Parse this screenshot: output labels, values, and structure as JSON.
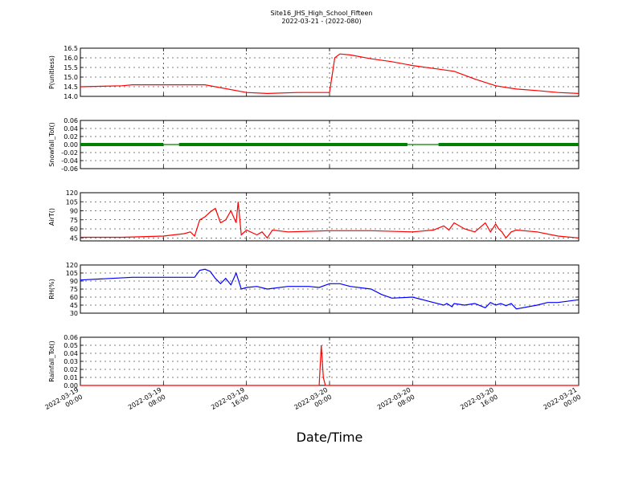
{
  "title_line1": "Site16_JHS_High_School_Fifteen",
  "title_line2": "2022-03-21 - (2022-080)",
  "xlabel": "Date/Time",
  "x_ticks": [
    {
      "l1": "2022-03-19",
      "l2": "00:00"
    },
    {
      "l1": "2022-03-19",
      "l2": "08:00"
    },
    {
      "l1": "2022-03-19",
      "l2": "16:00"
    },
    {
      "l1": "2022-03-20",
      "l2": "00:00"
    },
    {
      "l1": "2022-03-20",
      "l2": "08:00"
    },
    {
      "l1": "2022-03-20",
      "l2": "16:00"
    },
    {
      "l1": "2022-03-21",
      "l2": "00:00"
    }
  ],
  "chart_data": [
    {
      "type": "line",
      "ylabel": "P(unitless)",
      "ylim": [
        14.0,
        16.5
      ],
      "yticks": [
        "14.0",
        "14.5",
        "15.0",
        "15.5",
        "16.0",
        "16.5"
      ],
      "grid": true,
      "color": "#ff0000",
      "x_hours": [
        0,
        4,
        5,
        8,
        12,
        16,
        18,
        21,
        24,
        24.5,
        25,
        26,
        28,
        30,
        32,
        34,
        36,
        38,
        40,
        42,
        44,
        46,
        48
      ],
      "values": [
        14.5,
        14.55,
        14.6,
        14.6,
        14.6,
        14.2,
        14.15,
        14.2,
        14.2,
        16.0,
        16.2,
        16.15,
        15.95,
        15.8,
        15.6,
        15.45,
        15.3,
        14.9,
        14.55,
        14.38,
        14.3,
        14.2,
        14.15
      ]
    },
    {
      "type": "line",
      "ylabel": "Snowfall_Tot()",
      "ylim": [
        -0.06,
        0.06
      ],
      "yticks": [
        "-0.06",
        "-0.04",
        "-0.02",
        "0.00",
        "0.02",
        "0.04",
        "0.06"
      ],
      "grid": true,
      "color": "#008000",
      "x_hours": [
        0,
        48
      ],
      "values": [
        0.0,
        0.0
      ],
      "marker_segments_hours": [
        [
          0,
          8
        ],
        [
          9.5,
          31.5
        ],
        [
          34.5,
          48
        ]
      ]
    },
    {
      "type": "line",
      "ylabel": "AirT()",
      "ylim": [
        40,
        120
      ],
      "yticks": [
        "45",
        "60",
        "75",
        "90",
        "105",
        "120"
      ],
      "grid": true,
      "color": "#ff0000",
      "x_hours": [
        0,
        4,
        8,
        10,
        10.6,
        11,
        11.5,
        12,
        12.5,
        13,
        13.5,
        14,
        14.5,
        15,
        15.2,
        15.5,
        16,
        17,
        17.5,
        18,
        18.5,
        20,
        24,
        28,
        32,
        34,
        35,
        35.5,
        36,
        37,
        38,
        39,
        39.5,
        40,
        40.3,
        40.6,
        41,
        41.5,
        42,
        44,
        46,
        48
      ],
      "values": [
        46,
        46,
        48,
        52,
        55,
        48,
        75,
        80,
        88,
        94,
        70,
        75,
        90,
        70,
        105,
        50,
        58,
        50,
        55,
        45,
        58,
        55,
        57,
        57,
        55,
        58,
        65,
        58,
        70,
        60,
        55,
        70,
        55,
        68,
        60,
        55,
        45,
        55,
        58,
        55,
        48,
        45
      ]
    },
    {
      "type": "line",
      "ylabel": "RH(%)",
      "ylim": [
        30,
        120
      ],
      "yticks": [
        "30",
        "45",
        "60",
        "75",
        "90",
        "105",
        "120"
      ],
      "grid": true,
      "color": "#0000ff",
      "x_hours": [
        0,
        3,
        5,
        8,
        11,
        11.5,
        12,
        12.5,
        13,
        13.5,
        14,
        14.5,
        15,
        15.5,
        16,
        17,
        18,
        20,
        22,
        23,
        24,
        25,
        26,
        28,
        29,
        30,
        32,
        34,
        35,
        35.3,
        35.8,
        36,
        37,
        38,
        39,
        39.5,
        40,
        40.5,
        41,
        41.5,
        42,
        44,
        45,
        46,
        48
      ],
      "values": [
        92,
        95,
        97,
        97,
        97,
        110,
        112,
        108,
        95,
        85,
        95,
        83,
        105,
        75,
        78,
        80,
        75,
        80,
        80,
        78,
        85,
        85,
        80,
        75,
        65,
        58,
        60,
        50,
        45,
        48,
        42,
        48,
        45,
        48,
        40,
        50,
        45,
        48,
        44,
        48,
        38,
        45,
        50,
        50,
        55
      ]
    },
    {
      "type": "line",
      "ylabel": "Rainfall_Tot()",
      "ylim": [
        0.0,
        0.06
      ],
      "yticks": [
        "0.00",
        "0.01",
        "0.02",
        "0.03",
        "0.04",
        "0.05",
        "0.06"
      ],
      "grid": true,
      "color": "#ff0000",
      "x_hours": [
        0,
        23,
        23.2,
        23.4,
        23.6,
        23.8,
        48
      ],
      "values": [
        0,
        0,
        0.05,
        0.01,
        0,
        0,
        0
      ]
    }
  ]
}
